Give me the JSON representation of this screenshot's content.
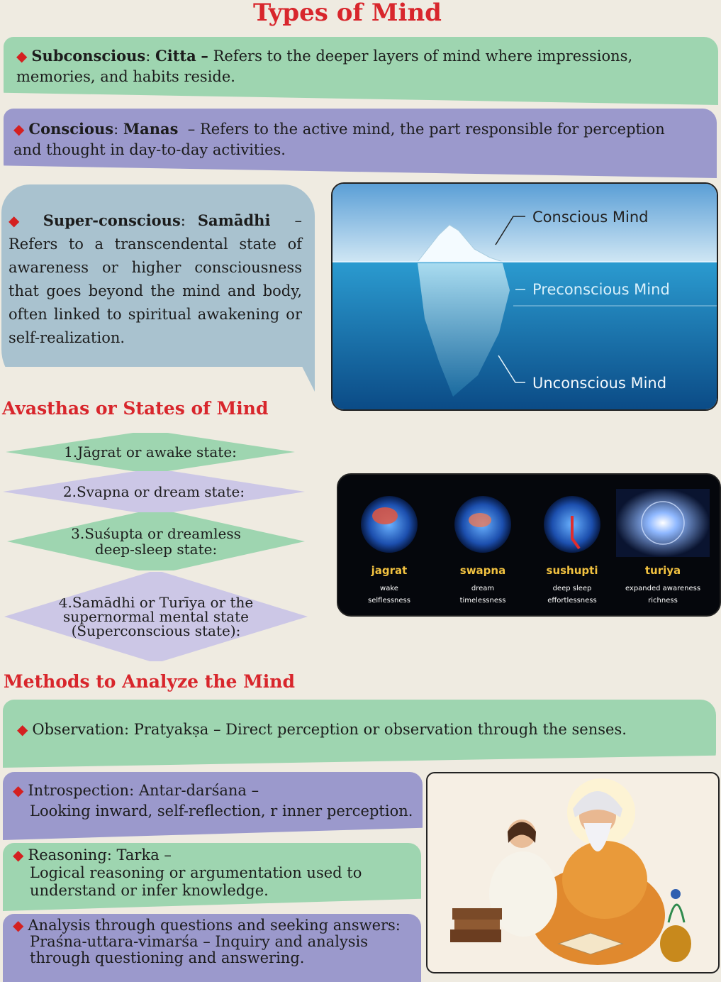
{
  "title": "Types of Mind",
  "types": {
    "subconscious": {
      "term": "Subconscious",
      "sanskrit": "Citta",
      "description": "Refers to the deeper layers of mind where impressions, memories, and habits reside."
    },
    "conscious": {
      "term": "Conscious",
      "sanskrit": "Manas",
      "description": "Refers to the active mind, the part responsible for perception and thought in day-to-day activities."
    },
    "superconscious": {
      "term": "Super-conscious",
      "sanskrit": "Samādhi",
      "description": "Refers to a transcendental state of awareness or higher consciousness that goes beyond the mind and body, often linked to spiritual awakening or self-realization."
    }
  },
  "iceberg": {
    "labels": [
      "Conscious Mind",
      "Preconscious Mind",
      "Unconscious Mind"
    ]
  },
  "avasthas": {
    "heading": "Avasthas or States of Mind",
    "states": [
      "1.Jāgrat or awake state:",
      "2.Svapna or dream state:",
      "3.Suśupta or dreamless deep-sleep state:",
      "4.Samādhi or Turīya or the supernormal mental state (Superconscious state):"
    ]
  },
  "brain_states": [
    {
      "name": "jagrat",
      "line1": "wake",
      "line2": "selflessness"
    },
    {
      "name": "swapna",
      "line1": "dream",
      "line2": "timelessness"
    },
    {
      "name": "sushupti",
      "line1": "deep sleep",
      "line2": "effortlessness"
    },
    {
      "name": "turiya",
      "line1": "expanded awareness",
      "line2": "richness"
    }
  ],
  "methods": {
    "heading": "Methods to Analyze the Mind",
    "observation": "Observation: Pratyakṣa  – Direct perception or observation through the senses.",
    "introspection": {
      "title": "Introspection: Antar-darśana –",
      "description": "Looking inward, self-reflection, r inner perception."
    },
    "reasoning": {
      "title": "Reasoning: Tarka –",
      "description": "Logical reasoning or argumentation used to understand or infer knowledge."
    },
    "analysis": {
      "title": "Analysis through questions and seeking answers:",
      "description": "Praśna-uttara-vimarśa – Inquiry and analysis through questioning and answering."
    }
  },
  "colors": {
    "accent_red": "#d8262c",
    "green_band": "#9ed5b0",
    "purple_band": "#9b99cc",
    "blue_bubble": "#a9c2cf",
    "background": "#efebe1"
  }
}
